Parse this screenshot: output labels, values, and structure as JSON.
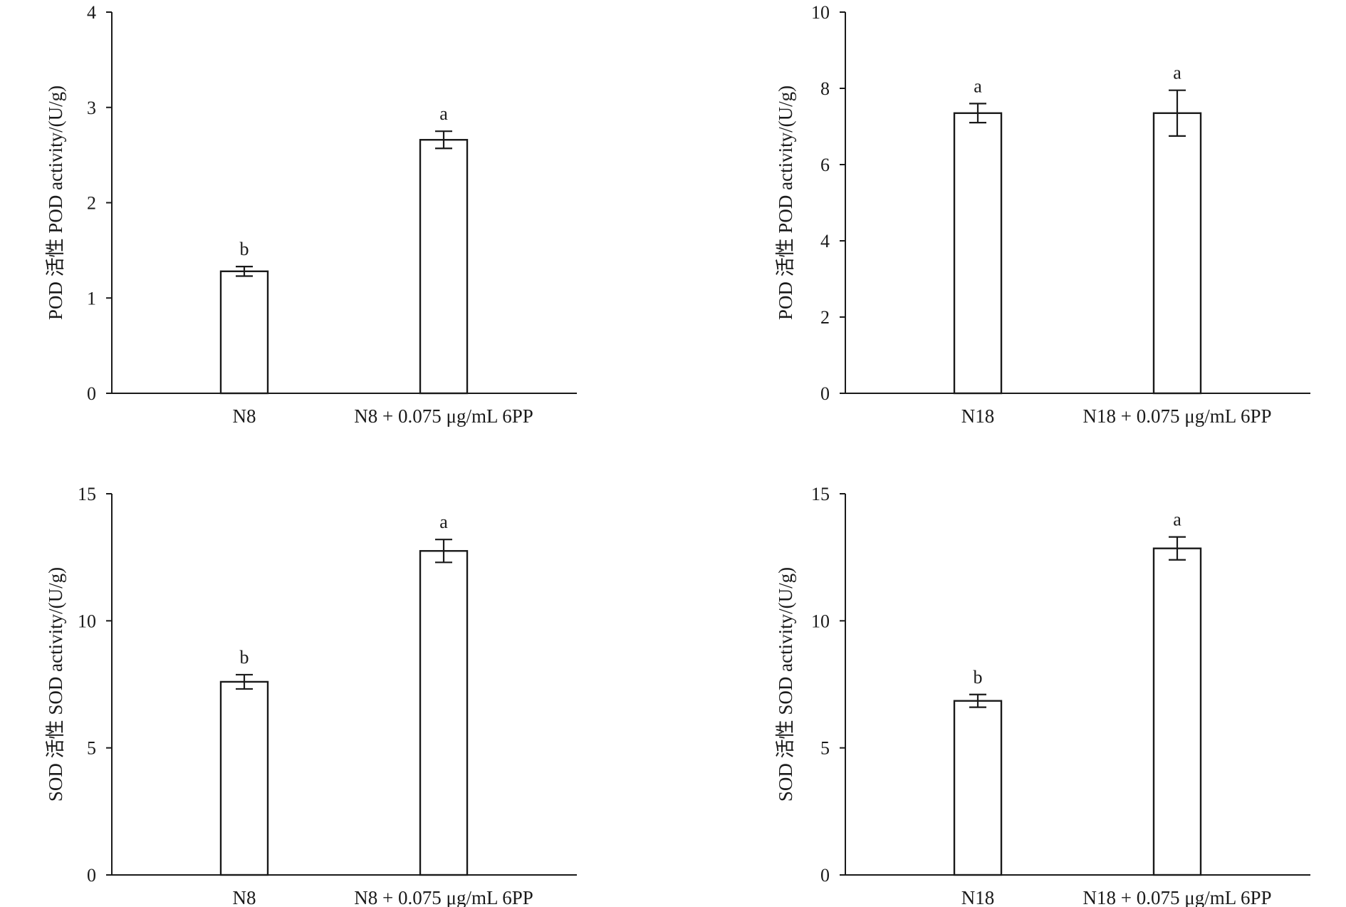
{
  "chart_data": [
    {
      "type": "bar",
      "categories": [
        "N8",
        "N8 + 0.075 μg/mL 6PP"
      ],
      "values": [
        1.28,
        2.66
      ],
      "errors": [
        0.05,
        0.09
      ],
      "significance": [
        "b",
        "a"
      ],
      "ylabel": "POD 活性 POD activity/(U/g)",
      "ylim": [
        0,
        4
      ],
      "yticks": [
        "0",
        "1",
        "2",
        "3",
        "4"
      ]
    },
    {
      "type": "bar",
      "categories": [
        "N18",
        "N18 + 0.075 μg/mL 6PP"
      ],
      "values": [
        7.35,
        7.35
      ],
      "errors": [
        0.25,
        0.6
      ],
      "significance": [
        "a",
        "a"
      ],
      "ylabel": "POD 活性 POD activity/(U/g)",
      "ylim": [
        0,
        10
      ],
      "yticks": [
        "0",
        "2",
        "4",
        "6",
        "8",
        "10"
      ]
    },
    {
      "type": "bar",
      "categories": [
        "N8",
        "N8 + 0.075 μg/mL 6PP"
      ],
      "values": [
        7.6,
        12.75
      ],
      "errors": [
        0.28,
        0.45
      ],
      "significance": [
        "b",
        "a"
      ],
      "ylabel": "SOD 活性 SOD activity/(U/g)",
      "ylim": [
        0,
        15
      ],
      "yticks": [
        "0",
        "5",
        "10",
        "15"
      ]
    },
    {
      "type": "bar",
      "categories": [
        "N18",
        "N18 + 0.075 μg/mL 6PP"
      ],
      "values": [
        6.85,
        12.85
      ],
      "errors": [
        0.25,
        0.45
      ],
      "significance": [
        "b",
        "a"
      ],
      "ylabel": "SOD 活性 SOD activity/(U/g)",
      "ylim": [
        0,
        15
      ],
      "yticks": [
        "0",
        "5",
        "10",
        "15"
      ]
    }
  ]
}
